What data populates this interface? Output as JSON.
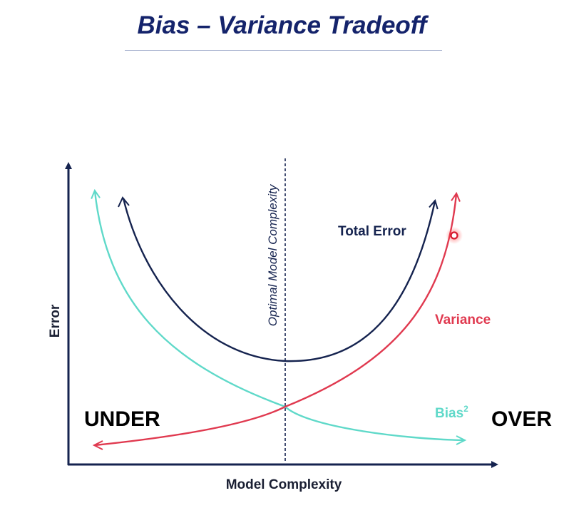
{
  "title": "Bias – Variance Tradeoff",
  "axes": {
    "x_label": "Model Complexity",
    "y_label": "Error"
  },
  "optimal_line_label": "Optimal Model Complexity",
  "regions": {
    "left": "UNDER",
    "right": "OVER"
  },
  "curves": {
    "total_error": {
      "label": "Total Error",
      "color": "#15234f"
    },
    "variance": {
      "label": "Variance",
      "color": "#e0394f"
    },
    "bias": {
      "label": "Bias",
      "superscript": "2",
      "color": "#5fd9c9"
    }
  },
  "colors": {
    "title": "#14236b",
    "axis": "#15234f"
  },
  "cursor_marker": "red-dot-cursor"
}
